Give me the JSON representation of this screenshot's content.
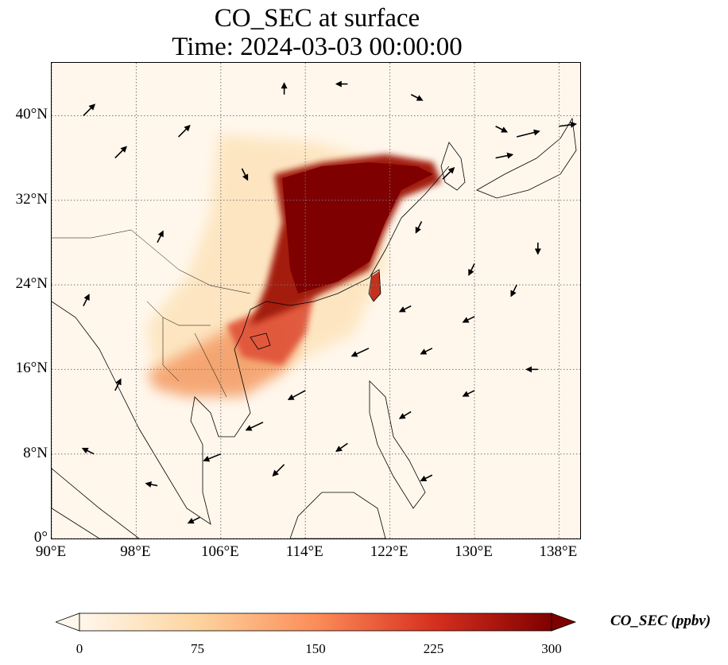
{
  "title": {
    "line1": "CO_SEC at surface",
    "line2": "Time: 2024-03-03 00:00:00"
  },
  "map": {
    "lon_range": [
      90,
      140
    ],
    "lat_range": [
      0,
      45
    ],
    "grid": true,
    "lat_ticks": [
      {
        "value": 0,
        "label": "0°"
      },
      {
        "value": 8,
        "label": "8°N"
      },
      {
        "value": 16,
        "label": "16°N"
      },
      {
        "value": 24,
        "label": "24°N"
      },
      {
        "value": 32,
        "label": "32°N"
      },
      {
        "value": 40,
        "label": "40°N"
      }
    ],
    "lon_ticks": [
      {
        "value": 90,
        "label": "90°E"
      },
      {
        "value": 98,
        "label": "98°E"
      },
      {
        "value": 106,
        "label": "106°E"
      },
      {
        "value": 114,
        "label": "114°E"
      },
      {
        "value": 122,
        "label": "122°E"
      },
      {
        "value": 130,
        "label": "130°E"
      },
      {
        "value": 138,
        "label": "138°E"
      }
    ]
  },
  "colorbar": {
    "label": "CO_SEC (ppbv)",
    "min": 0,
    "max": 300,
    "extend": "both",
    "colormap": [
      "#fff7ec",
      "#fdd49e",
      "#fc8d59",
      "#d7301f",
      "#7f0000"
    ],
    "ticks": [
      {
        "value": 0,
        "label": "0"
      },
      {
        "value": 75,
        "label": "75"
      },
      {
        "value": 150,
        "label": "150"
      },
      {
        "value": 225,
        "label": "225"
      },
      {
        "value": 300,
        "label": "300"
      }
    ]
  },
  "chart_data": {
    "type": "heatmap",
    "variable": "CO_SEC",
    "units": "ppbv",
    "value_range": [
      0,
      300
    ],
    "concentration_regions": [
      {
        "lon_range": [
          111,
          126
        ],
        "lat_range": [
          24,
          36
        ],
        "approx_value": 300
      },
      {
        "lon_range": [
          102,
          112
        ],
        "lat_range": [
          16,
          24
        ],
        "approx_value": 180
      },
      {
        "lon_range": [
          100,
          106
        ],
        "lat_range": [
          13,
          17
        ],
        "approx_value": 140
      },
      {
        "lon_range": [
          120,
          121.5
        ],
        "lat_range": [
          22,
          25
        ],
        "approx_value": 250
      },
      {
        "lon_range": [
          105,
          112
        ],
        "lat_range": [
          24,
          37
        ],
        "approx_value": 40
      }
    ],
    "wind_vectors": [
      {
        "lon": 93,
        "lat": 40,
        "u": 1,
        "v": 1
      },
      {
        "lon": 96,
        "lat": 36,
        "u": 1,
        "v": 1
      },
      {
        "lon": 102,
        "lat": 38,
        "u": 1,
        "v": 1
      },
      {
        "lon": 108,
        "lat": 35,
        "u": 0.5,
        "v": -1
      },
      {
        "lon": 112,
        "lat": 42,
        "u": 0,
        "v": 1
      },
      {
        "lon": 118,
        "lat": 43,
        "u": -1,
        "v": 0
      },
      {
        "lon": 124,
        "lat": 42,
        "u": 1,
        "v": -0.5
      },
      {
        "lon": 132,
        "lat": 39,
        "u": 1,
        "v": -0.5
      },
      {
        "lon": 134,
        "lat": 38,
        "u": 2,
        "v": 0.5
      },
      {
        "lon": 138,
        "lat": 39,
        "u": 1.5,
        "v": 0.2
      },
      {
        "lon": 132,
        "lat": 36,
        "u": 1.5,
        "v": 0.3
      },
      {
        "lon": 127,
        "lat": 34,
        "u": 1,
        "v": 1
      },
      {
        "lon": 125,
        "lat": 30,
        "u": -0.5,
        "v": -1
      },
      {
        "lon": 130,
        "lat": 26,
        "u": -0.5,
        "v": -1
      },
      {
        "lon": 134,
        "lat": 24,
        "u": -0.5,
        "v": -1
      },
      {
        "lon": 124,
        "lat": 22,
        "u": -1,
        "v": -0.5
      },
      {
        "lon": 130,
        "lat": 21,
        "u": -1,
        "v": -0.5
      },
      {
        "lon": 126,
        "lat": 18,
        "u": -1,
        "v": -0.5
      },
      {
        "lon": 120,
        "lat": 18,
        "u": -1.5,
        "v": -0.7
      },
      {
        "lon": 114,
        "lat": 14,
        "u": -1.5,
        "v": -0.8
      },
      {
        "lon": 110,
        "lat": 11,
        "u": -1.5,
        "v": -0.7
      },
      {
        "lon": 106,
        "lat": 8,
        "u": -1.5,
        "v": -0.6
      },
      {
        "lon": 112,
        "lat": 7,
        "u": -1,
        "v": -1
      },
      {
        "lon": 118,
        "lat": 9,
        "u": -1,
        "v": -0.7
      },
      {
        "lon": 124,
        "lat": 12,
        "u": -1,
        "v": -0.6
      },
      {
        "lon": 130,
        "lat": 14,
        "u": -1,
        "v": -0.5
      },
      {
        "lon": 100,
        "lat": 5,
        "u": -1,
        "v": 0.2
      },
      {
        "lon": 94,
        "lat": 8,
        "u": -1,
        "v": 0.5
      },
      {
        "lon": 96,
        "lat": 14,
        "u": 0.5,
        "v": 1
      },
      {
        "lon": 93,
        "lat": 22,
        "u": 0.5,
        "v": 1
      },
      {
        "lon": 100,
        "lat": 28,
        "u": 0.5,
        "v": 1
      },
      {
        "lon": 136,
        "lat": 16,
        "u": -1,
        "v": 0
      },
      {
        "lon": 136,
        "lat": 28,
        "u": 0,
        "v": -1
      },
      {
        "lon": 104,
        "lat": 2,
        "u": -1,
        "v": -0.5
      },
      {
        "lon": 126,
        "lat": 6,
        "u": -1,
        "v": -0.5
      }
    ]
  }
}
